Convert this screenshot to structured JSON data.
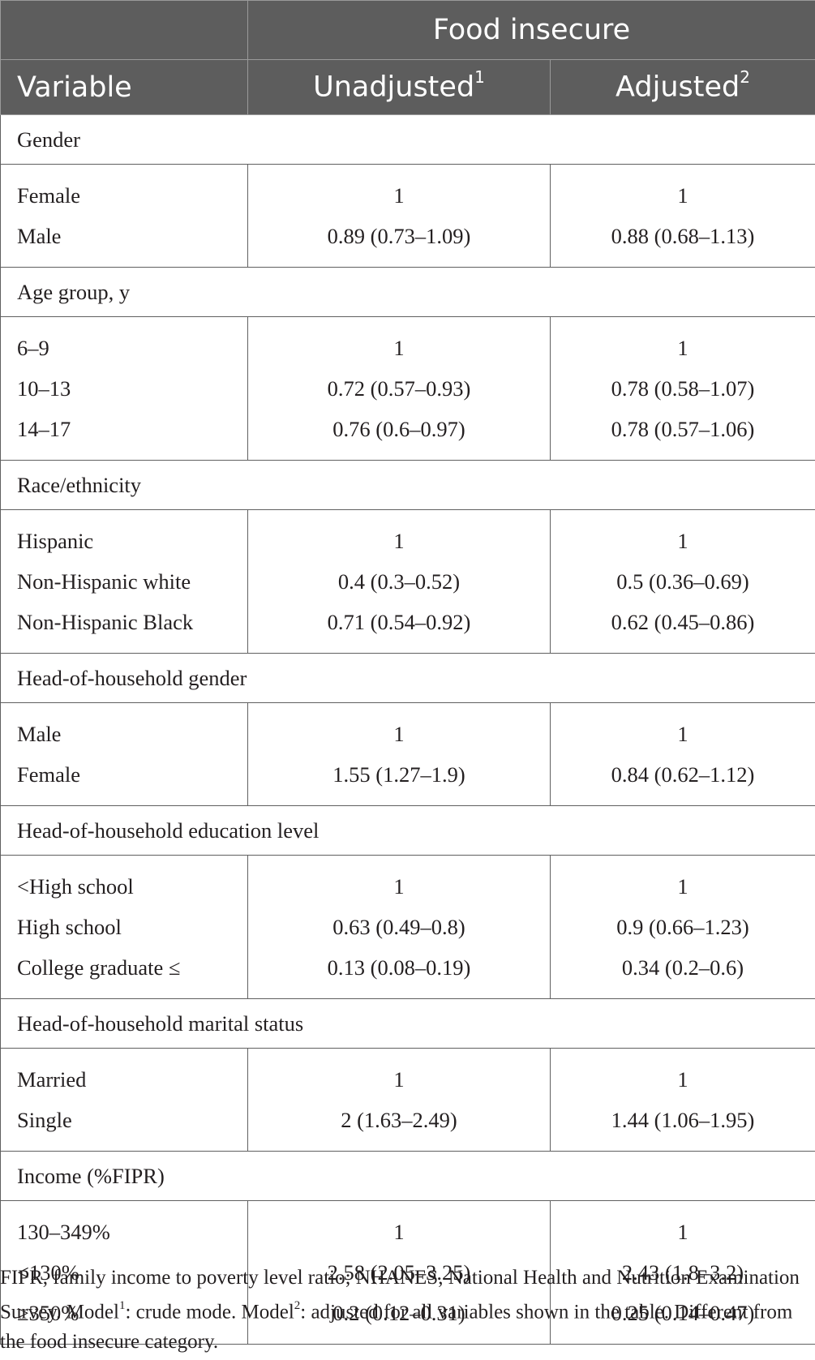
{
  "header": {
    "group_label": "Food insecure",
    "variable_label": "Variable",
    "unadjusted_label": "Unadjusted",
    "unadjusted_sup": "1",
    "adjusted_label": "Adjusted",
    "adjusted_sup": "2"
  },
  "sections": [
    {
      "title": "Gender",
      "rows": [
        {
          "label": "Female",
          "unadjusted": "1",
          "adjusted": "1"
        },
        {
          "label": "Male",
          "unadjusted": "0.89 (0.73–1.09)",
          "adjusted": "0.88 (0.68–1.13)"
        }
      ]
    },
    {
      "title": "Age group, y",
      "rows": [
        {
          "label": "6–9",
          "unadjusted": "1",
          "adjusted": "1"
        },
        {
          "label": "10–13",
          "unadjusted": "0.72 (0.57–0.93)",
          "adjusted": "0.78 (0.58–1.07)"
        },
        {
          "label": "14–17",
          "unadjusted": "0.76 (0.6–0.97)",
          "adjusted": "0.78 (0.57–1.06)"
        }
      ]
    },
    {
      "title": "Race/ethnicity",
      "rows": [
        {
          "label": "Hispanic",
          "unadjusted": "1",
          "adjusted": "1"
        },
        {
          "label": "Non-Hispanic white",
          "unadjusted": "0.4 (0.3–0.52)",
          "adjusted": "0.5 (0.36–0.69)"
        },
        {
          "label": "Non-Hispanic Black",
          "unadjusted": "0.71 (0.54–0.92)",
          "adjusted": "0.62 (0.45–0.86)"
        }
      ]
    },
    {
      "title": "Head-of-household gender",
      "rows": [
        {
          "label": "Male",
          "unadjusted": "1",
          "adjusted": "1"
        },
        {
          "label": "Female",
          "unadjusted": "1.55 (1.27–1.9)",
          "adjusted": "0.84 (0.62–1.12)"
        }
      ]
    },
    {
      "title": "Head-of-household education level",
      "rows": [
        {
          "label": "<High school",
          "unadjusted": "1",
          "adjusted": "1"
        },
        {
          "label": "High school",
          "unadjusted": "0.63 (0.49–0.8)",
          "adjusted": "0.9 (0.66–1.23)"
        },
        {
          "label": "College graduate ≤",
          "unadjusted": "0.13 (0.08–0.19)",
          "adjusted": "0.34 (0.2–0.6)"
        }
      ]
    },
    {
      "title": "Head-of-household marital status",
      "rows": [
        {
          "label": "Married",
          "unadjusted": "1",
          "adjusted": "1"
        },
        {
          "label": "Single",
          "unadjusted": "2 (1.63–2.49)",
          "adjusted": "1.44 (1.06–1.95)"
        }
      ]
    },
    {
      "title": "Income (%FIPR)",
      "rows": [
        {
          "label": "130–349%",
          "unadjusted": "1",
          "adjusted": "1"
        },
        {
          "label": "<130%",
          "unadjusted": "2.58 (2.05–3.25)",
          "adjusted": "2.43 (1.8–3.2)"
        },
        {
          "label": "≥350%",
          "unadjusted": "0.2 (0.12–0.31)",
          "adjusted": "0.25 (0.14–0.47)"
        }
      ]
    }
  ],
  "footnote": {
    "part1": "FIPR, family income to poverty level ratio; NHANES, National Health and Nutrition Examination Survey. Model",
    "sup1": "1",
    "part2": ": crude mode. Model",
    "sup2": "2",
    "part3": ": adjusted for all variables shown in the table. Different from the food insecure category."
  }
}
